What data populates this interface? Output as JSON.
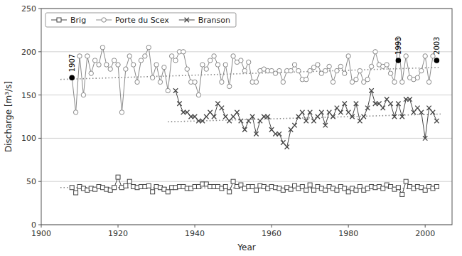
{
  "chart_data": {
    "type": "line",
    "xlabel": "Year",
    "ylabel": "Discharge [m³/s]",
    "xlim": [
      1900,
      2007
    ],
    "ylim": [
      0,
      250
    ],
    "xticks": [
      1900,
      1920,
      1940,
      1960,
      1980,
      2000
    ],
    "yticks": [
      0,
      50,
      100,
      150,
      200,
      250
    ],
    "grid": "y",
    "legend": "upper left",
    "series": [
      {
        "name": "Brig",
        "color": "#444444",
        "marker": "square",
        "line_style": "solid",
        "x": [
          1908,
          1909,
          1910,
          1911,
          1912,
          1913,
          1914,
          1915,
          1916,
          1917,
          1918,
          1919,
          1920,
          1921,
          1922,
          1923,
          1924,
          1925,
          1926,
          1927,
          1928,
          1929,
          1930,
          1931,
          1932,
          1933,
          1934,
          1935,
          1936,
          1937,
          1938,
          1939,
          1940,
          1941,
          1942,
          1943,
          1944,
          1945,
          1946,
          1947,
          1948,
          1949,
          1950,
          1951,
          1952,
          1953,
          1954,
          1955,
          1956,
          1957,
          1958,
          1959,
          1960,
          1961,
          1962,
          1963,
          1964,
          1965,
          1966,
          1967,
          1968,
          1969,
          1970,
          1971,
          1972,
          1973,
          1974,
          1975,
          1976,
          1977,
          1978,
          1979,
          1980,
          1981,
          1982,
          1983,
          1984,
          1985,
          1986,
          1987,
          1988,
          1989,
          1990,
          1991,
          1992,
          1993,
          1994,
          1995,
          1996,
          1997,
          1998,
          1999,
          2000,
          2001,
          2002,
          2003
        ],
        "values": [
          43,
          37,
          44,
          42,
          40,
          42,
          41,
          44,
          43,
          41,
          40,
          43,
          55,
          43,
          45,
          50,
          44,
          43,
          44,
          44,
          45,
          38,
          44,
          43,
          41,
          38,
          43,
          43,
          44,
          44,
          42,
          42,
          44,
          44,
          47,
          47,
          44,
          44,
          44,
          42,
          44,
          38,
          50,
          44,
          46,
          42,
          44,
          44,
          40,
          45,
          44,
          42,
          44,
          43,
          42,
          40,
          43,
          41,
          45,
          42,
          44,
          40,
          46,
          40,
          44,
          42,
          40,
          44,
          42,
          40,
          44,
          42,
          38,
          42,
          40,
          44,
          40,
          42,
          44,
          43,
          44,
          42,
          46,
          44,
          41,
          43,
          35,
          50,
          44,
          42,
          44,
          43,
          40,
          44,
          42,
          44
        ]
      },
      {
        "name": "Porte du Scex",
        "color": "#888888",
        "marker": "circle",
        "line_style": "solid",
        "x": [
          1908,
          1909,
          1910,
          1911,
          1912,
          1913,
          1914,
          1915,
          1916,
          1917,
          1918,
          1919,
          1920,
          1921,
          1922,
          1923,
          1924,
          1925,
          1926,
          1927,
          1928,
          1929,
          1930,
          1931,
          1932,
          1933,
          1934,
          1935,
          1936,
          1937,
          1938,
          1939,
          1940,
          1941,
          1942,
          1943,
          1944,
          1945,
          1946,
          1947,
          1948,
          1949,
          1950,
          1951,
          1952,
          1953,
          1954,
          1955,
          1956,
          1957,
          1958,
          1959,
          1960,
          1961,
          1962,
          1963,
          1964,
          1965,
          1966,
          1967,
          1968,
          1969,
          1970,
          1971,
          1972,
          1973,
          1974,
          1975,
          1976,
          1977,
          1978,
          1979,
          1980,
          1981,
          1982,
          1983,
          1984,
          1985,
          1986,
          1987,
          1988,
          1989,
          1990,
          1991,
          1992,
          1993,
          1994,
          1995,
          1996,
          1997,
          1998,
          1999,
          2000,
          2001,
          2002,
          2003
        ],
        "values": [
          170,
          130,
          195,
          150,
          195,
          175,
          190,
          185,
          205,
          185,
          180,
          190,
          185,
          130,
          180,
          195,
          185,
          165,
          190,
          195,
          205,
          170,
          185,
          165,
          182,
          155,
          195,
          190,
          200,
          200,
          180,
          165,
          165,
          150,
          185,
          180,
          190,
          195,
          185,
          165,
          185,
          160,
          195,
          188,
          190,
          178,
          188,
          165,
          165,
          178,
          180,
          178,
          178,
          175,
          178,
          165,
          178,
          178,
          185,
          178,
          168,
          168,
          178,
          182,
          185,
          175,
          178,
          183,
          165,
          178,
          183,
          175,
          195,
          165,
          168,
          178,
          165,
          168,
          183,
          200,
          185,
          183,
          185,
          175,
          165,
          215,
          165,
          195,
          170,
          168,
          170,
          178,
          195,
          165,
          195,
          190
        ]
      },
      {
        "name": "Branson",
        "color": "#444444",
        "marker": "x",
        "line_style": "solid",
        "x": [
          1935,
          1936,
          1937,
          1938,
          1939,
          1940,
          1941,
          1942,
          1943,
          1944,
          1945,
          1946,
          1947,
          1948,
          1949,
          1950,
          1951,
          1952,
          1953,
          1954,
          1955,
          1956,
          1957,
          1958,
          1959,
          1960,
          1961,
          1962,
          1963,
          1964,
          1965,
          1966,
          1967,
          1968,
          1969,
          1970,
          1971,
          1972,
          1973,
          1974,
          1975,
          1976,
          1977,
          1978,
          1979,
          1980,
          1981,
          1982,
          1983,
          1984,
          1985,
          1986,
          1987,
          1988,
          1989,
          1990,
          1991,
          1992,
          1993,
          1994,
          1995,
          1996,
          1997,
          1998,
          1999,
          2000,
          2001,
          2002,
          2003
        ],
        "values": [
          155,
          140,
          130,
          130,
          125,
          125,
          120,
          120,
          125,
          130,
          125,
          140,
          135,
          125,
          120,
          125,
          130,
          120,
          110,
          120,
          125,
          105,
          120,
          125,
          125,
          110,
          105,
          105,
          95,
          90,
          110,
          115,
          125,
          130,
          120,
          130,
          120,
          125,
          130,
          115,
          130,
          125,
          135,
          130,
          140,
          130,
          125,
          140,
          120,
          125,
          135,
          155,
          140,
          140,
          135,
          145,
          140,
          125,
          140,
          125,
          145,
          145,
          130,
          135,
          130,
          100,
          135,
          130,
          120
        ]
      },
      {
        "color": "#888888",
        "line_style": "dotted",
        "x": [
          1905,
          2004
        ],
        "values": [
          168,
          182
        ]
      },
      {
        "color": "#888888",
        "line_style": "dotted",
        "x": [
          1933,
          2004
        ],
        "values": [
          119,
          128
        ]
      },
      {
        "color": "#888888",
        "line_style": "dotted",
        "x": [
          1905,
          2004
        ],
        "values": [
          43,
          42
        ]
      }
    ],
    "annotations": [
      {
        "x": 1908,
        "y": 170,
        "text": "1907"
      },
      {
        "x": 1993,
        "y": 190,
        "text": "1993"
      },
      {
        "x": 2003,
        "y": 190,
        "text": "2003"
      }
    ]
  }
}
